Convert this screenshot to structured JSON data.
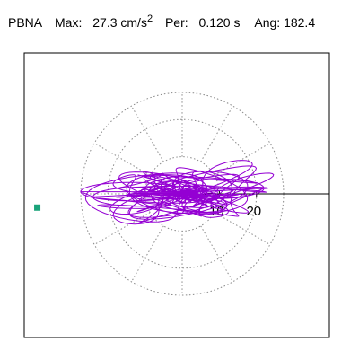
{
  "header": {
    "station": "PBNA",
    "max_label": "Max:",
    "max_value": "27.3",
    "max_unit_base": "cm/s",
    "max_unit_exp": "2",
    "per_label": "Per:",
    "per_value": "0.120 s",
    "ang_label": "Ang:",
    "ang_value": "182.4"
  },
  "colors": {
    "trace": "#9400d3",
    "marker": "#1aa37a",
    "grid": "#888888",
    "frame": "#000000"
  },
  "chart_data": {
    "type": "polar-trace",
    "radial_max": 27.3,
    "grid_rings": [
      10,
      20
    ],
    "grid_outer_radius": 27.3,
    "spokes_deg": [
      0,
      30,
      60,
      90,
      120,
      150,
      180,
      210,
      240,
      270,
      300,
      330
    ],
    "tick_labels": [
      "10",
      "20"
    ],
    "peak_angle_deg": 182.4,
    "peak_magnitude": 27.3,
    "reference_line_deg": 0
  }
}
